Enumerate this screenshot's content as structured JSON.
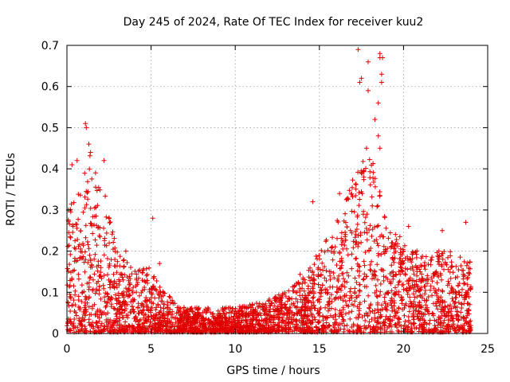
{
  "chart_data": {
    "type": "scatter",
    "title": "Day 245 of 2024, Rate Of TEC Index for receiver kuu2",
    "xlabel": "GPS time / hours",
    "ylabel": "ROTI / TECUs",
    "xlim": [
      0,
      25
    ],
    "ylim": [
      0,
      0.7
    ],
    "x_ticks": [
      0,
      5,
      10,
      15,
      20,
      25
    ],
    "x_tick_labels": [
      "0",
      "5",
      "10",
      "15",
      "20",
      "25"
    ],
    "y_ticks": [
      0,
      0.1,
      0.2,
      0.3,
      0.4,
      0.5,
      0.6,
      0.7
    ],
    "y_tick_labels": [
      "0",
      "0.1",
      "0.2",
      "0.3",
      "0.4",
      "0.5",
      "0.6",
      "0.7"
    ],
    "grid": true,
    "marker": "plus",
    "color": "#e00000",
    "series": [
      {
        "name": "ROTI",
        "envelope_x": [
          0,
          0.5,
          1,
          1.3,
          1.6,
          2,
          2.5,
          3,
          4,
          5,
          5.5,
          6,
          7,
          8,
          9,
          10,
          11,
          12,
          13,
          14,
          15,
          16,
          17,
          17.5,
          18,
          18.5,
          19,
          20,
          21,
          22,
          23,
          24
        ],
        "envelope_max": [
          0.3,
          0.33,
          0.38,
          0.45,
          0.4,
          0.38,
          0.3,
          0.2,
          0.15,
          0.16,
          0.12,
          0.09,
          0.06,
          0.06,
          0.06,
          0.06,
          0.07,
          0.08,
          0.1,
          0.15,
          0.2,
          0.27,
          0.38,
          0.42,
          0.42,
          0.4,
          0.28,
          0.22,
          0.2,
          0.2,
          0.2,
          0.17
        ],
        "outliers": [
          [
            0.2,
            0.3
          ],
          [
            0.3,
            0.41
          ],
          [
            0.6,
            0.42
          ],
          [
            1.1,
            0.51
          ],
          [
            1.15,
            0.5
          ],
          [
            1.3,
            0.46
          ],
          [
            1.4,
            0.44
          ],
          [
            1.7,
            0.39
          ],
          [
            2.2,
            0.42
          ],
          [
            3.5,
            0.2
          ],
          [
            5.1,
            0.28
          ],
          [
            5.5,
            0.17
          ],
          [
            14.6,
            0.32
          ],
          [
            16.2,
            0.34
          ],
          [
            17.3,
            0.69
          ],
          [
            17.4,
            0.61
          ],
          [
            17.5,
            0.62
          ],
          [
            17.9,
            0.59
          ],
          [
            17.9,
            0.66
          ],
          [
            18.3,
            0.52
          ],
          [
            18.5,
            0.56
          ],
          [
            18.6,
            0.67
          ],
          [
            18.6,
            0.68
          ],
          [
            18.7,
            0.61
          ],
          [
            18.7,
            0.63
          ],
          [
            18.75,
            0.67
          ],
          [
            18.5,
            0.48
          ],
          [
            18.6,
            0.45
          ],
          [
            17.8,
            0.45
          ],
          [
            20.3,
            0.26
          ],
          [
            22.3,
            0.25
          ],
          [
            23.7,
            0.27
          ]
        ]
      }
    ]
  }
}
